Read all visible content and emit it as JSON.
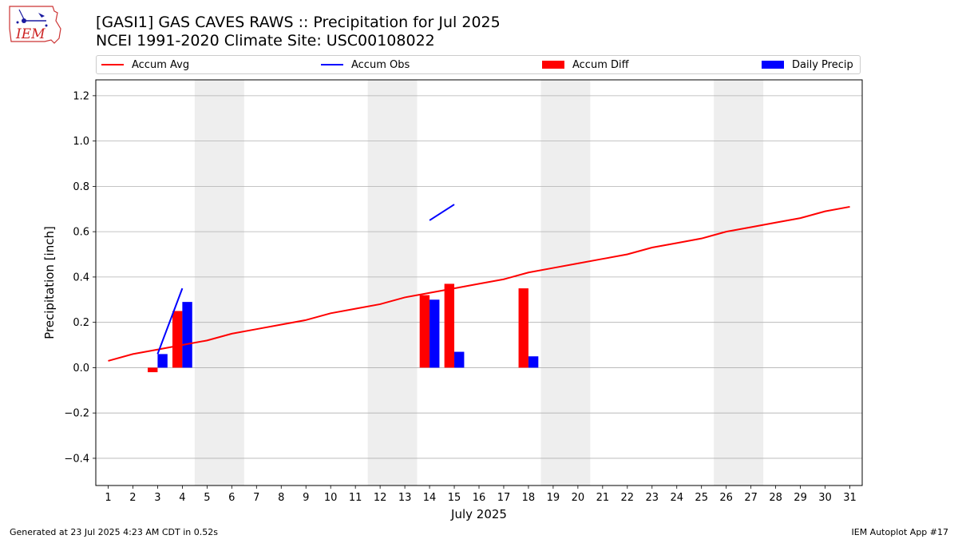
{
  "title": "[GASI1] GAS CAVES RAWS :: Precipitation for Jul 2025",
  "subtitle": "NCEI 1991-2020 Climate Site: USC00108022",
  "logo_text": "IEM",
  "footer_left": "Generated at 23 Jul 2025 4:23 AM CDT in 0.52s",
  "footer_right": "IEM Autoplot App #17",
  "colors": {
    "avg": "#ff0000",
    "obs": "#0000ff",
    "diff": "#ff0000",
    "daily": "#0000ff",
    "weekend": "#eeeeee",
    "grid": "#b0b0b0"
  },
  "legend": [
    {
      "label": "Accum Avg",
      "kind": "line",
      "color": "#ff0000"
    },
    {
      "label": "Accum Obs",
      "kind": "line",
      "color": "#0000ff"
    },
    {
      "label": "Accum Diff",
      "kind": "box",
      "color": "#ff0000"
    },
    {
      "label": "Daily Precip",
      "kind": "box",
      "color": "#0000ff"
    }
  ],
  "chart_data": {
    "type": "bar",
    "title": "[GASI1] GAS CAVES RAWS :: Precipitation for Jul 2025",
    "xlabel": "July 2025",
    "ylabel": "Precipitation [inch]",
    "xlim": [
      0.5,
      31.5
    ],
    "ylim": [
      -0.52,
      1.27
    ],
    "x_ticks": [
      1,
      2,
      3,
      4,
      5,
      6,
      7,
      8,
      9,
      10,
      11,
      12,
      13,
      14,
      15,
      16,
      17,
      18,
      19,
      20,
      21,
      22,
      23,
      24,
      25,
      26,
      27,
      28,
      29,
      30,
      31
    ],
    "y_ticks": [
      -0.4,
      -0.2,
      0.0,
      0.2,
      0.4,
      0.6,
      0.8,
      1.0,
      1.2
    ],
    "y_tick_labels": [
      "−0.4",
      "−0.2",
      "0.0",
      "0.2",
      "0.4",
      "0.6",
      "0.8",
      "1.0",
      "1.2"
    ],
    "grid": "y",
    "legend_position": "top",
    "weekend_bands": [
      [
        4.5,
        6.5
      ],
      [
        11.5,
        13.5
      ],
      [
        18.5,
        20.5
      ],
      [
        25.5,
        27.5
      ]
    ],
    "series": [
      {
        "name": "Accum Avg",
        "kind": "line",
        "x": [
          1,
          2,
          3,
          4,
          5,
          6,
          7,
          8,
          9,
          10,
          11,
          12,
          13,
          14,
          15,
          16,
          17,
          18,
          19,
          20,
          21,
          22,
          23,
          24,
          25,
          26,
          27,
          28,
          29,
          30,
          31
        ],
        "values": [
          0.03,
          0.06,
          0.08,
          0.1,
          0.12,
          0.15,
          0.17,
          0.19,
          0.21,
          0.24,
          0.26,
          0.28,
          0.31,
          0.33,
          0.35,
          0.37,
          0.39,
          0.42,
          0.44,
          0.46,
          0.48,
          0.5,
          0.53,
          0.55,
          0.57,
          0.6,
          0.62,
          0.64,
          0.66,
          0.69,
          0.71
        ]
      },
      {
        "name": "Accum Obs",
        "kind": "line",
        "segments": [
          {
            "x": [
              3,
              4
            ],
            "values": [
              0.06,
              0.35
            ]
          },
          {
            "x": [
              14,
              15
            ],
            "values": [
              0.65,
              0.72
            ]
          }
        ]
      },
      {
        "name": "Accum Diff",
        "kind": "bar",
        "x": [
          3,
          4,
          14,
          15,
          18
        ],
        "values": [
          -0.02,
          0.25,
          0.32,
          0.37,
          0.35
        ]
      },
      {
        "name": "Daily Precip",
        "kind": "bar",
        "x": [
          3,
          4,
          14,
          15,
          18
        ],
        "values": [
          0.06,
          0.29,
          0.3,
          0.07,
          0.05
        ]
      }
    ]
  }
}
